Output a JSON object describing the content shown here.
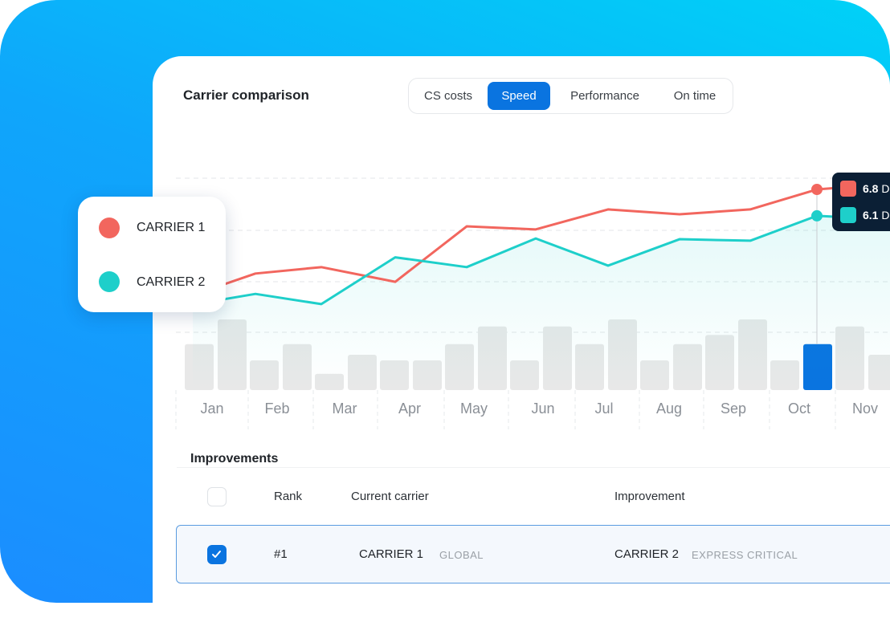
{
  "header": {
    "title": "Carrier comparison"
  },
  "tabs": [
    {
      "label": "CS costs",
      "active": false
    },
    {
      "label": "Speed",
      "active": true
    },
    {
      "label": "Performance",
      "active": false
    },
    {
      "label": "On time",
      "active": false
    }
  ],
  "colors": {
    "accent": "#0a74e0",
    "carrier_1": "#f2665e",
    "carrier_2": "#1ecfca",
    "bar": "#e8e8e8",
    "tooltip_bg": "#0b1f35"
  },
  "legend": [
    {
      "label": "CARRIER 1",
      "color": "#f2665e"
    },
    {
      "label": "CARRIER 2",
      "color": "#1ecfca"
    }
  ],
  "tooltip": {
    "items": [
      {
        "value": "6.8",
        "unit": "D",
        "color": "#f2665e"
      },
      {
        "value": "6.1",
        "unit": "D",
        "color": "#1ecfca"
      }
    ]
  },
  "chart_data": {
    "type": "line",
    "categories": [
      "Jan",
      "Feb",
      "Mar",
      "Apr",
      "May",
      "Jun",
      "Jul",
      "Aug",
      "Sep",
      "Oct",
      "Nov"
    ],
    "series": [
      {
        "name": "CARRIER 1",
        "values": [
          4.0,
          4.57,
          4.74,
          4.35,
          5.82,
          5.74,
          6.27,
          6.14,
          6.27,
          6.8,
          6.95
        ]
      },
      {
        "name": "CARRIER 2",
        "values": [
          3.75,
          4.03,
          3.76,
          5.0,
          4.74,
          5.5,
          4.78,
          5.48,
          5.44,
          6.1,
          6.0
        ]
      }
    ],
    "bars": [
      [
        6.5,
        10
      ],
      [
        4.2,
        6.5
      ],
      [
        2.3,
        5
      ],
      [
        4.2,
        4.2
      ],
      [
        6.5,
        9
      ],
      [
        4.2,
        9
      ],
      [
        6.5,
        10
      ],
      [
        4.2,
        6.5
      ],
      [
        7.8,
        10
      ],
      [
        4.2,
        6.5
      ],
      [
        9,
        5
      ]
    ],
    "highlighted": {
      "category": "Oct",
      "bar_index": 1
    },
    "grid": true
  },
  "table": {
    "title": "Improvements",
    "columns": [
      "Rank",
      "Current carrier",
      "Improvement"
    ],
    "rows": [
      {
        "selected": true,
        "rank": "#1",
        "current": "CARRIER 1",
        "current_sub": "GLOBAL",
        "improvement": "CARRIER 2",
        "improvement_sub": "EXPRESS CRITICAL"
      }
    ]
  }
}
